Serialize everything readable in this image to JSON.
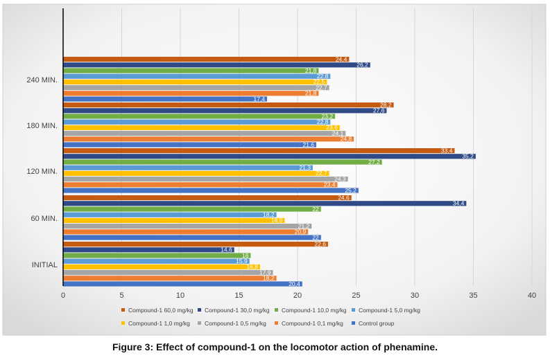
{
  "caption": "Figure 3: Effect of compound-1 on the locomotor action of phenamine.",
  "chart_data": {
    "type": "bar",
    "orientation": "horizontal",
    "title": "",
    "xlabel": "",
    "ylabel": "",
    "xlim": [
      0,
      40
    ],
    "x_ticks": [
      "0",
      "5",
      "10",
      "15",
      "20",
      "25",
      "30",
      "35",
      "40"
    ],
    "categories": [
      "240 MIN.",
      "180 MIN.",
      "120 MIN.",
      "60 MIN.",
      "INITIAL"
    ],
    "series": [
      {
        "name": "Compound-1 60,0 mg/kg",
        "color": "#c55a11",
        "values": [
          24.4,
          28.2,
          33.4,
          24.6,
          22.6
        ],
        "labels": [
          "24,4",
          "28,2",
          "33,4",
          "24,6",
          "22,6"
        ]
      },
      {
        "name": "Compound-1 30,0 mg/kg",
        "color": "#2f4a87",
        "values": [
          26.2,
          27.6,
          35.2,
          34.4,
          14.6
        ],
        "labels": [
          "26,2",
          "27,6",
          "35,2",
          "34,4",
          "14,6"
        ]
      },
      {
        "name": "Compound-1 10,0 mg/kg",
        "color": "#70ad47",
        "values": [
          21.8,
          23.2,
          27.2,
          22,
          16
        ],
        "labels": [
          "21,8",
          "23,2",
          "27,2",
          "22",
          "16"
        ]
      },
      {
        "name": "Compound-1 5,0  mg/kg",
        "color": "#5b9bd5",
        "values": [
          22.8,
          22.8,
          21.3,
          18.2,
          15.9
        ],
        "labels": [
          "22,8",
          "22,8",
          "21,3",
          "18,2",
          "15,9"
        ]
      },
      {
        "name": "Compound-1 1,0 mg/kg",
        "color": "#ffc000",
        "values": [
          22.5,
          23.6,
          22.7,
          18.9,
          16.8
        ],
        "labels": [
          "22,5",
          "23,6",
          "22,7",
          "18,9",
          "16,8"
        ]
      },
      {
        "name": "Compound-1 0,5 mg/kg",
        "color": "#a5a5a5",
        "values": [
          22.7,
          24.1,
          24.3,
          21.2,
          17.9
        ],
        "labels": [
          "22,7",
          "24,1",
          "24,3",
          "21,2",
          "17,9"
        ]
      },
      {
        "name": "Compound-1  0,1 mg/kg",
        "color": "#ed7d31",
        "values": [
          21.8,
          24.8,
          23.4,
          20.9,
          18.2
        ],
        "labels": [
          "21,8",
          "24,8",
          "23,4",
          "20,9",
          "18,2"
        ]
      },
      {
        "name": "Control group",
        "color": "#4472c4",
        "values": [
          17.4,
          21.6,
          25.2,
          22,
          20.4
        ],
        "labels": [
          "17,4",
          "21,6",
          "25,2",
          "22",
          "20,4"
        ]
      }
    ],
    "legend_position": "bottom",
    "grid": true
  }
}
